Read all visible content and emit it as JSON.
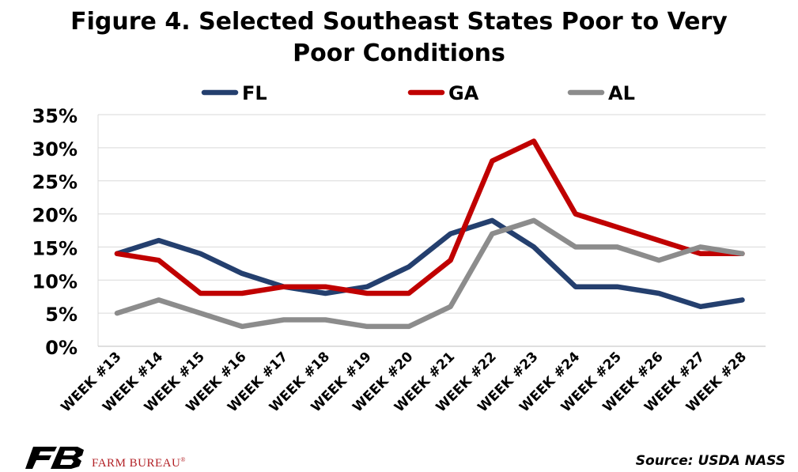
{
  "chart_data": {
    "type": "line",
    "title_line1": "Figure 4. Selected Southeast States Poor to Very",
    "title_line2": "Poor Conditions",
    "categories": [
      "WEEK #13",
      "WEEK #14",
      "WEEK #15",
      "WEEK #16",
      "WEEK #17",
      "WEEK #18",
      "WEEK #19",
      "WEEK #20",
      "WEEK #21",
      "WEEK #22",
      "WEEK #23",
      "WEEK #24",
      "WEEK #25",
      "WEEK #26",
      "WEEK #27",
      "WEEK #28"
    ],
    "series": [
      {
        "name": "FL",
        "color": "#243f6e",
        "values": [
          14,
          16,
          14,
          11,
          9,
          8,
          9,
          12,
          17,
          19,
          15,
          9,
          9,
          8,
          6,
          7
        ]
      },
      {
        "name": "GA",
        "color": "#c00000",
        "values": [
          14,
          13,
          8,
          8,
          9,
          9,
          8,
          8,
          13,
          28,
          31,
          20,
          18,
          16,
          14,
          14
        ]
      },
      {
        "name": "AL",
        "color": "#8c8c8c",
        "values": [
          5,
          7,
          5,
          3,
          4,
          4,
          3,
          3,
          6,
          17,
          19,
          15,
          15,
          13,
          15,
          14
        ]
      }
    ],
    "yticks": [
      "0%",
      "5%",
      "10%",
      "15%",
      "20%",
      "25%",
      "30%",
      "35%"
    ],
    "ylim": [
      0,
      35
    ],
    "grid": true,
    "legend_position": "top-center",
    "source": "Source: USDA NASS"
  },
  "footer": {
    "logo_icon": "farm-bureau-logo-icon",
    "brand": "FARM BUREAU",
    "brand_mark": "®",
    "brand_color": "#b21f24"
  }
}
